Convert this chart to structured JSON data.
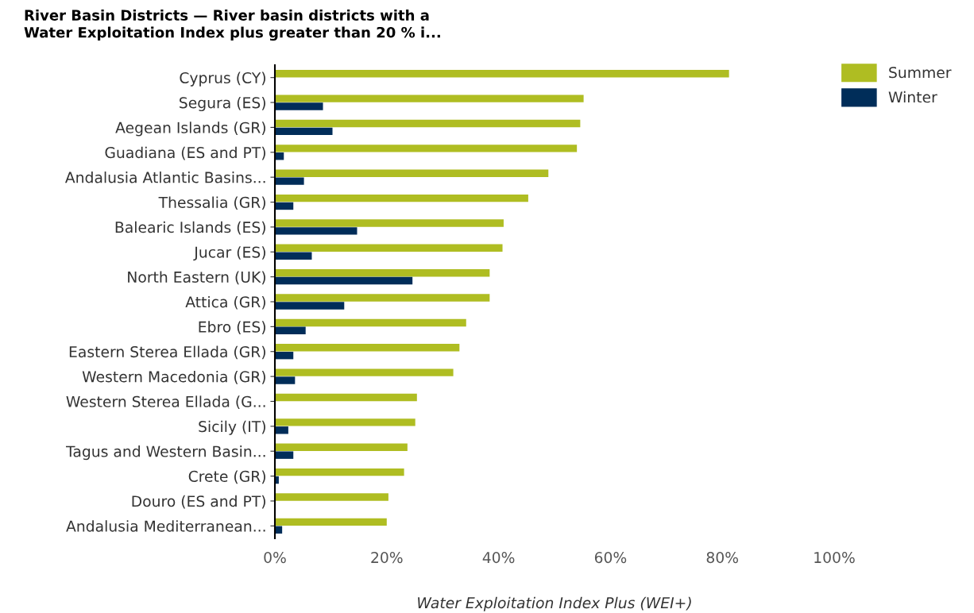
{
  "chart_data": {
    "type": "bar",
    "orientation": "horizontal",
    "title": "River Basin Districts — River basin districts with a\nWater Exploitation Index plus greater than 20 % i...",
    "xlabel": "Water Exploitation Index Plus (WEI+)",
    "categories": [
      "Cyprus (CY)",
      "Segura (ES)",
      "Aegean Islands (GR)",
      "Guadiana (ES and PT)",
      "Andalusia Atlantic Basins...",
      "Thessalia (GR)",
      "Balearic Islands (ES)",
      "Jucar (ES)",
      "North Eastern (UK)",
      "Attica (GR)",
      "Ebro (ES)",
      "Eastern Sterea Ellada (GR)",
      "Western Macedonia (GR)",
      "Western Sterea Ellada (G...",
      "Sicily (IT)",
      "Tagus and Western Basin...",
      "Crete (GR)",
      "Douro (ES and PT)",
      "Andalusia Mediterranean..."
    ],
    "series": [
      {
        "name": "Summer",
        "color": "#afbd22",
        "values": [
          81.2,
          55.2,
          54.6,
          54.0,
          48.9,
          45.3,
          40.9,
          40.7,
          38.4,
          38.4,
          34.2,
          33.0,
          31.9,
          25.4,
          25.1,
          23.7,
          23.1,
          20.3,
          20.0
        ]
      },
      {
        "name": "Winter",
        "color": "#002d59",
        "values": [
          null,
          8.6,
          10.3,
          1.6,
          5.2,
          3.3,
          14.7,
          6.6,
          24.6,
          12.4,
          5.5,
          3.3,
          3.6,
          null,
          2.4,
          3.3,
          0.7,
          null,
          1.3
        ]
      }
    ],
    "xlim": [
      0,
      100
    ],
    "xticks": [
      {
        "value": 0,
        "label": "0%"
      },
      {
        "value": 20,
        "label": "20%"
      },
      {
        "value": 40,
        "label": "40%"
      },
      {
        "value": 60,
        "label": "60%"
      },
      {
        "value": 80,
        "label": "80%"
      },
      {
        "value": 100,
        "label": "100%"
      }
    ],
    "legend": "top right",
    "grid": false
  }
}
